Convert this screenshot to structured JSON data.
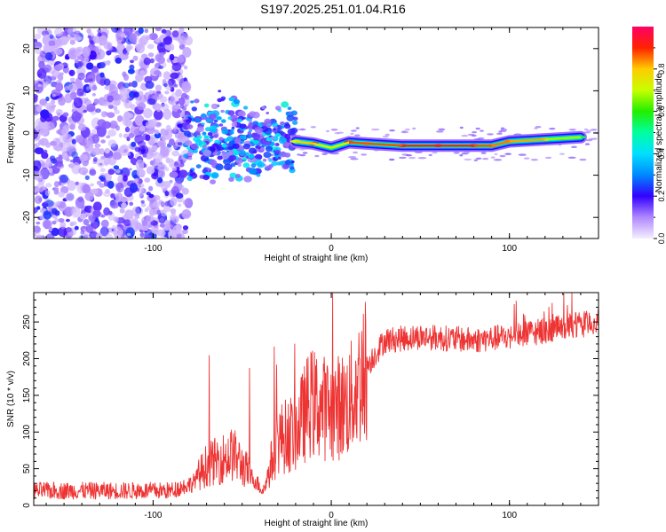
{
  "page": {
    "title": "S197.2025.251.01.04.R16"
  },
  "chart_data": [
    {
      "type": "heatmap",
      "xlabel": "Height of straight line (km)",
      "ylabel": "Frequency (Hz)",
      "xlim": [
        -167,
        150
      ],
      "ylim": [
        -25,
        25
      ],
      "xticks": [
        -100,
        0,
        100
      ],
      "yticks": [
        -20,
        -10,
        0,
        10,
        20
      ],
      "colorbar": {
        "label": "Normalized spectral amplitude",
        "range": [
          0,
          1
        ],
        "ticks": [
          0.0,
          0.2,
          0.4,
          0.6,
          0.8
        ]
      },
      "ridge": [
        {
          "x": -20,
          "f": -2,
          "amp": 0.7
        },
        {
          "x": -10,
          "f": -2.5,
          "amp": 0.9
        },
        {
          "x": 0,
          "f": -3.5,
          "amp": 0.55
        },
        {
          "x": 10,
          "f": -2.2,
          "amp": 0.9
        },
        {
          "x": 20,
          "f": -2.5,
          "amp": 0.85
        },
        {
          "x": 40,
          "f": -3,
          "amp": 0.9
        },
        {
          "x": 60,
          "f": -3,
          "amp": 0.95
        },
        {
          "x": 80,
          "f": -3,
          "amp": 0.9
        },
        {
          "x": 90,
          "f": -3,
          "amp": 0.85
        },
        {
          "x": 100,
          "f": -2,
          "amp": 0.85
        },
        {
          "x": 120,
          "f": -1.5,
          "amp": 0.8
        },
        {
          "x": 140,
          "f": -1,
          "amp": 0.55
        }
      ]
    },
    {
      "type": "line",
      "xlabel": "Height of straight line (km)",
      "ylabel": "SNR (10 * v/v)",
      "xlim": [
        -167,
        150
      ],
      "ylim": [
        0,
        290
      ],
      "xticks": [
        -100,
        0,
        100
      ],
      "yticks": [
        0,
        50,
        100,
        150,
        200,
        250
      ],
      "color": "#ee3333",
      "series_envelope": [
        {
          "x": -167,
          "snr": 20
        },
        {
          "x": -90,
          "snr": 20
        },
        {
          "x": -78,
          "snr": 30
        },
        {
          "x": -70,
          "snr": 55
        },
        {
          "x": -55,
          "snr": 70
        },
        {
          "x": -45,
          "snr": 40
        },
        {
          "x": -38,
          "snr": 20
        },
        {
          "x": -30,
          "snr": 90
        },
        {
          "x": -20,
          "snr": 100
        },
        {
          "x": -12,
          "snr": 140
        },
        {
          "x": 0,
          "snr": 130
        },
        {
          "x": 10,
          "snr": 140
        },
        {
          "x": 20,
          "snr": 190
        },
        {
          "x": 30,
          "snr": 225
        },
        {
          "x": 50,
          "snr": 230
        },
        {
          "x": 80,
          "snr": 225
        },
        {
          "x": 100,
          "snr": 230
        },
        {
          "x": 150,
          "snr": 250
        }
      ]
    }
  ]
}
